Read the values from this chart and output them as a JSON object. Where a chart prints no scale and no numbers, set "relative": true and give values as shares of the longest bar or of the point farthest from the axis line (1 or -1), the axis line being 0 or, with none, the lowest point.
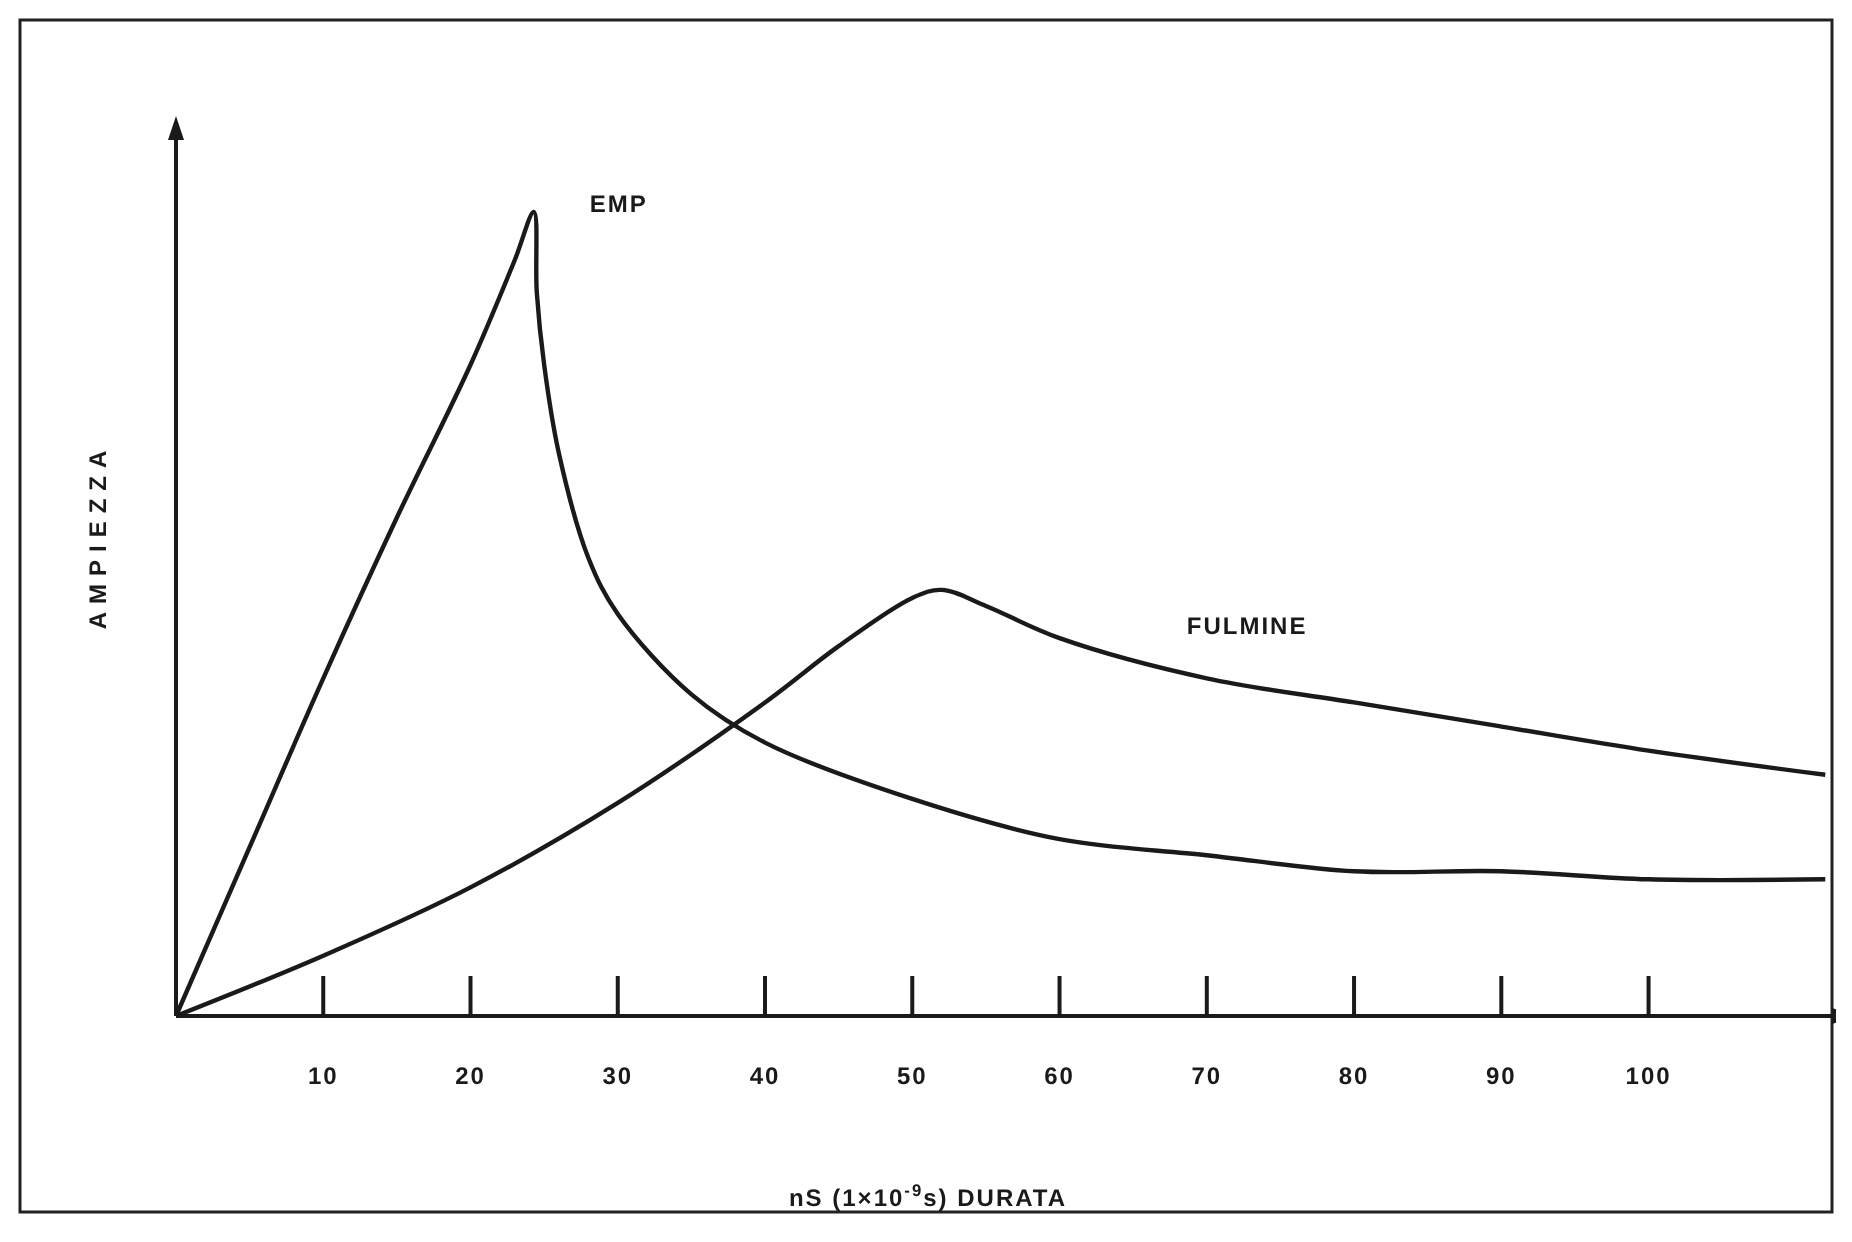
{
  "chart_data": {
    "type": "line",
    "relative": true,
    "xlabel": "nS (1×10$^{-9}$s)  DURATA",
    "ylabel": "AMPIEZZA",
    "xlim": [
      0,
      113
    ],
    "xticks": [
      10,
      20,
      30,
      40,
      50,
      60,
      70,
      80,
      90,
      100
    ],
    "grid": false,
    "marker": "none",
    "line_style": "solid",
    "series": [
      {
        "name": "EMP",
        "color": "#1a1a1a",
        "x": [
          0,
          5,
          10,
          15,
          20,
          23,
          24.3,
          24.5,
          25,
          26,
          28,
          30,
          35,
          40,
          50,
          60,
          70,
          80,
          90,
          100,
          112
        ],
        "values": [
          0,
          0.21,
          0.42,
          0.62,
          0.81,
          0.94,
          1,
          0.9,
          0.81,
          0.7,
          0.57,
          0.5,
          0.4,
          0.34,
          0.27,
          0.22,
          0.2,
          0.18,
          0.18,
          0.17,
          0.17
        ]
      },
      {
        "name": "FULMINE",
        "color": "#1a1a1a",
        "x": [
          0,
          10,
          20,
          30,
          40,
          45,
          50,
          52,
          55,
          60,
          70,
          80,
          90,
          100,
          112
        ],
        "values": [
          0,
          0.075,
          0.16,
          0.265,
          0.39,
          0.46,
          0.52,
          0.53,
          0.51,
          0.47,
          0.42,
          0.39,
          0.36,
          0.33,
          0.3
        ]
      }
    ]
  }
}
